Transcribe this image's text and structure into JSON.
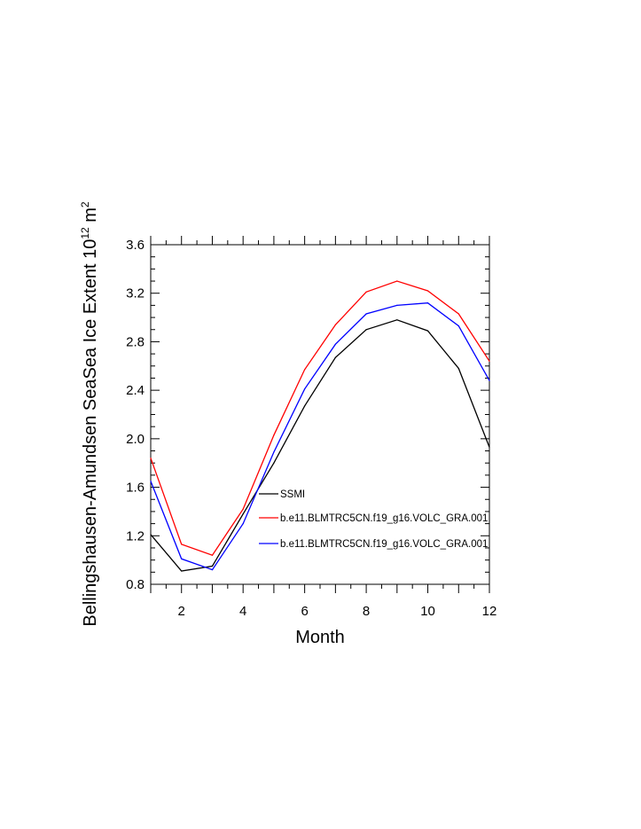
{
  "chart_data": {
    "type": "line",
    "title": "",
    "xlabel": "Month",
    "ylabel": "Bellingshausen-Amundsen SeaSea Ice Extent 10",
    "ylabel_exp": "12",
    "ylabel_unit": " m",
    "ylabel_unit_exp": "2",
    "xlim": [
      1,
      12
    ],
    "ylim": [
      0.8,
      3.6
    ],
    "x_ticks": [
      2,
      4,
      6,
      8,
      10,
      12
    ],
    "y_ticks": [
      0.8,
      1.2,
      1.6,
      2.0,
      2.4,
      2.8,
      3.2,
      3.6
    ],
    "y_tick_labels": [
      "0.8",
      "1.2",
      "1.6",
      "2.0",
      "2.4",
      "2.8",
      "3.2",
      "3.6"
    ],
    "x_tick_labels": [
      "2",
      "4",
      "6",
      "8",
      "10",
      "12"
    ],
    "grid": false,
    "legend_position": "center-right",
    "x": [
      1,
      2,
      3,
      4,
      5,
      6,
      7,
      8,
      9,
      10,
      11,
      12
    ],
    "series": [
      {
        "name": "SSMI",
        "color": "#000000",
        "values": [
          1.21,
          0.91,
          0.95,
          1.38,
          1.8,
          2.27,
          2.67,
          2.9,
          2.98,
          2.89,
          2.58,
          1.93
        ]
      },
      {
        "name": "b.e11.BLMTRC5CN.f19_g16.VOLC_GRA.001",
        "color": "#ff0000",
        "values": [
          1.84,
          1.13,
          1.04,
          1.42,
          2.03,
          2.57,
          2.94,
          3.21,
          3.3,
          3.22,
          3.03,
          2.64
        ]
      },
      {
        "name": "b.e11.BLMTRC5CN.f19_g16.VOLC_GRA.001",
        "color": "#0000ff",
        "values": [
          1.65,
          1.01,
          0.92,
          1.3,
          1.89,
          2.41,
          2.78,
          3.03,
          3.1,
          3.12,
          2.93,
          2.48
        ]
      }
    ]
  }
}
